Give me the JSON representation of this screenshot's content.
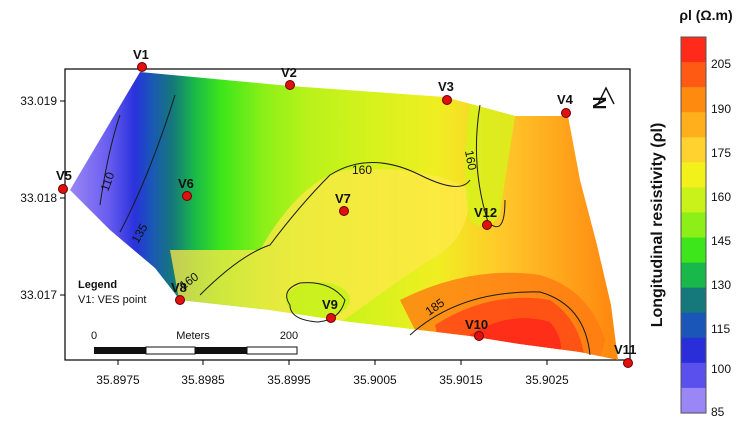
{
  "map": {
    "x_ticks": [
      "35.8975",
      "35.8985",
      "35.8995",
      "35.9005",
      "35.9015",
      "35.9025"
    ],
    "y_ticks": [
      "33.019",
      "33.018",
      "33.017"
    ],
    "ves_points": [
      {
        "label": "V1"
      },
      {
        "label": "V2"
      },
      {
        "label": "V3"
      },
      {
        "label": "V4"
      },
      {
        "label": "V5"
      },
      {
        "label": "V6"
      },
      {
        "label": "V7"
      },
      {
        "label": "V8"
      },
      {
        "label": "V9"
      },
      {
        "label": "V10"
      },
      {
        "label": "V11"
      },
      {
        "label": "V12"
      }
    ],
    "contour_labels": [
      "110",
      "135",
      "160",
      "160",
      "160",
      "185"
    ],
    "legend": {
      "title": "Legend",
      "entry": "V1: VES point"
    },
    "scale_bar": {
      "start": "0",
      "unit": "Meters",
      "end": "200"
    },
    "north_arrow": "N"
  },
  "colorbar": {
    "title": "ρl (Ω.m)",
    "axis_label": "Longitudinal resistivity (ρl)",
    "ticks": [
      "205",
      "190",
      "175",
      "160",
      "145",
      "130",
      "115",
      "100",
      "85"
    ],
    "colors": [
      "#ff2a1a",
      "#ff5a14",
      "#ff8a10",
      "#ffae1c",
      "#ffd230",
      "#f2f21a",
      "#c8f21a",
      "#8cf018",
      "#3ce61a",
      "#19b84a",
      "#15787a",
      "#1a56b8",
      "#2a2ed8",
      "#5a50ee",
      "#9a86f4"
    ],
    "range": [
      85,
      220
    ]
  }
}
